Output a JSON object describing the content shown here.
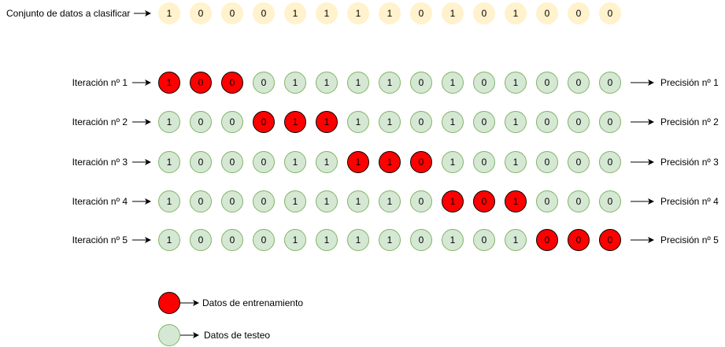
{
  "dataset": {
    "label": "Conjunto de datos a clasificar",
    "values": [
      "1",
      "0",
      "0",
      "0",
      "1",
      "1",
      "1",
      "1",
      "0",
      "1",
      "0",
      "1",
      "0",
      "0",
      "0"
    ]
  },
  "iterations": [
    {
      "label": "Iteración nº 1",
      "result": "Precisión nº 1",
      "train_start": 0
    },
    {
      "label": "Iteración nº 2",
      "result": "Precisión nº 2",
      "train_start": 3
    },
    {
      "label": "Iteración nº 3",
      "result": "Precisión nº 3",
      "train_start": 6
    },
    {
      "label": "Iteración nº 4",
      "result": "Precisión nº 4",
      "train_start": 9
    },
    {
      "label": "Iteración nº 5",
      "result": "Precisión nº 5",
      "train_start": 12
    }
  ],
  "fold_size": 3,
  "legend": {
    "train": "Datos de entrenamiento",
    "test": "Datos de testeo"
  },
  "colors": {
    "dataset_fill": "#fff2cc",
    "train_fill": "#ff0000",
    "test_fill": "#d5e8d4",
    "test_stroke": "#82b366"
  }
}
